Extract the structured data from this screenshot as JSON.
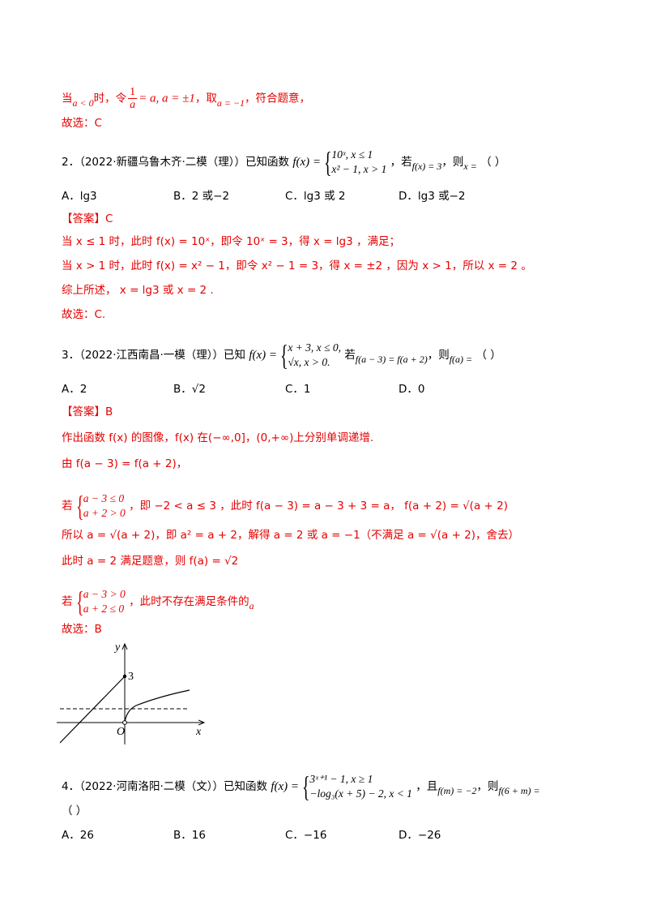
{
  "lines": {
    "l1_a": "当",
    "l1_b": "a < 0",
    "l1_c": "时，令",
    "l1_frac_num": "1",
    "l1_frac_den": "a",
    "l1_d": "= a, a = ±1",
    "l1_e": "，取",
    "l1_f": "a = −1",
    "l1_g": "，符合题意，",
    "l2": "故选：C"
  },
  "q2": {
    "number": "2．",
    "source": "（2022·新疆乌鲁木齐·二模（理））已知函数",
    "fx": "f(x) =",
    "case1": "10ˣ,     x ≤ 1",
    "case2": "x² − 1,   x > 1",
    "cond": "，若",
    "cond_eq": "f(x) = 3",
    "then": "，则",
    "x_eq": "x =",
    "paren": "（     ）",
    "options": [
      "A．lg3",
      "B．2 或−2",
      "C．lg3 或 2",
      "D．lg3 或−2"
    ],
    "answer": "【答案】C",
    "sol1_a": "当 x ≤ 1 时，此时 f(x) = 10ˣ，即令 10ˣ = 3，得 x = lg3 ，满足；",
    "sol2_a": "当 x > 1 时，此时 f(x) = x² − 1，即令 x² − 1 = 3，得 x = ±2 ，因为 x > 1，所以 x = 2 。",
    "sol3": "综上所述， x = lg3 或 x = 2 .",
    "sol4": "故选：C."
  },
  "q3": {
    "number": "3．",
    "source": "（2022·江西南昌·一模（理））已知",
    "fx": "f(x) =",
    "case1": "x + 3, x ≤ 0,",
    "case2": "√x, x > 0.",
    "cond": "若",
    "cond_eq": "f(a − 3) = f(a + 2)",
    "then": "，则",
    "fa": "f(a) =",
    "paren": "（     ）",
    "options": [
      "A．2",
      "B．√2",
      "C．1",
      "D．0"
    ],
    "answer": "【答案】B",
    "sol1": "作出函数 f(x) 的图像，f(x) 在(−∞,0]，(0,+∞)上分别单调递增.",
    "sol2": "由 f(a − 3) = f(a + 2)，",
    "sol3_if": "若",
    "sol3_c1": "a − 3 ≤ 0",
    "sol3_c2": "a + 2 > 0",
    "sol3_rest": "，即  −2 < a ≤ 3 ，此时  f(a − 3) = a − 3 + 3 = a，  f(a + 2) = √(a + 2)",
    "sol4": "所以 a = √(a + 2)，即 a² = a + 2，解得 a = 2 或 a = −1（不满足 a = √(a + 2)，舍去）",
    "sol5": "此时 a = 2 满足题意，则 f(a) = √2",
    "sol6_if": "若",
    "sol6_c1": "a − 3 > 0",
    "sol6_c2": "a + 2 ≤ 0",
    "sol6_rest": "，此时不存在满足条件的",
    "sol6_a": "a",
    "sol7": "故选：B"
  },
  "graph": {
    "y_label": "y",
    "x_label": "x",
    "o_label": "O",
    "three_label": "3"
  },
  "q4": {
    "number": "4．",
    "source": "（2022·河南洛阳·二模（文））已知函数",
    "fx": "f(x) =",
    "case1": "3ˣ⁺¹ − 1, x ≥ 1",
    "case2": "−log₃(x + 5) − 2, x < 1",
    "cond": "，且",
    "cond_eq": "f(m) = −2",
    "then": "，则",
    "target": "f(6 + m) =",
    "paren": "（     ）",
    "options": [
      "A．26",
      "B．16",
      "C．−16",
      "D．−26"
    ]
  }
}
